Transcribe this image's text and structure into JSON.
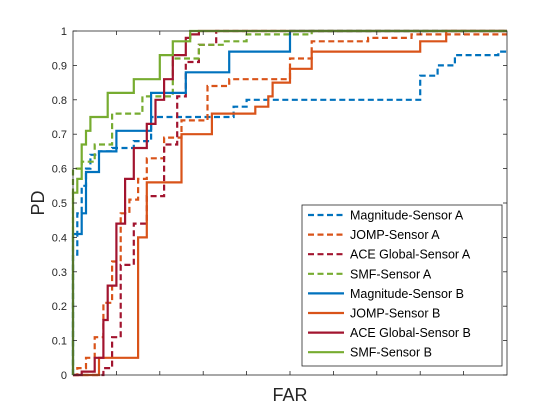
{
  "chart_data": {
    "type": "line",
    "title": "",
    "xlabel": "FAR",
    "ylabel": "PD",
    "ylim": [
      0,
      1
    ],
    "xlim": [
      0,
      1
    ],
    "y_ticks": [
      "0",
      "0.1",
      "0.2",
      "0.3",
      "0.4",
      "0.5",
      "0.6",
      "0.7",
      "0.8",
      "0.9",
      "1"
    ],
    "x_tick_labels_shown": false,
    "grid": false,
    "legend_position": "bottom-right",
    "series": [
      {
        "name": "Magnitude-Sensor A",
        "color": "#0072BD",
        "style": "dashed",
        "x": [
          0.0,
          0.0,
          0.01,
          0.01,
          0.02,
          0.02,
          0.03,
          0.03,
          0.04,
          0.04,
          0.06,
          0.06,
          0.09,
          0.09,
          0.14,
          0.14,
          0.18,
          0.18,
          0.24,
          0.24,
          0.37,
          0.37,
          0.4,
          0.4,
          0.54,
          0.54,
          0.8,
          0.8,
          0.84,
          0.84,
          0.88,
          0.88,
          0.98,
          0.98,
          1.0
        ],
        "y": [
          0.0,
          0.35,
          0.35,
          0.47,
          0.47,
          0.55,
          0.55,
          0.6,
          0.6,
          0.64,
          0.64,
          0.65,
          0.65,
          0.66,
          0.66,
          0.68,
          0.68,
          0.75,
          0.75,
          0.75,
          0.75,
          0.78,
          0.78,
          0.8,
          0.8,
          0.8,
          0.8,
          0.87,
          0.87,
          0.9,
          0.9,
          0.93,
          0.93,
          0.94,
          0.94
        ]
      },
      {
        "name": "JOMP-Sensor A",
        "color": "#D95319",
        "style": "dashed",
        "x": [
          0.0,
          0.01,
          0.01,
          0.03,
          0.03,
          0.05,
          0.05,
          0.07,
          0.07,
          0.09,
          0.09,
          0.11,
          0.11,
          0.13,
          0.13,
          0.15,
          0.15,
          0.17,
          0.17,
          0.21,
          0.21,
          0.25,
          0.25,
          0.31,
          0.31,
          0.36,
          0.36,
          0.5,
          0.5,
          0.55,
          0.55,
          0.68,
          0.68,
          0.78,
          0.78,
          1.0
        ],
        "y": [
          0.0,
          0.0,
          0.02,
          0.02,
          0.05,
          0.05,
          0.11,
          0.11,
          0.21,
          0.21,
          0.33,
          0.33,
          0.47,
          0.47,
          0.51,
          0.51,
          0.57,
          0.57,
          0.63,
          0.63,
          0.69,
          0.69,
          0.74,
          0.74,
          0.84,
          0.84,
          0.86,
          0.86,
          0.92,
          0.92,
          0.97,
          0.97,
          0.98,
          0.98,
          0.99,
          0.99
        ]
      },
      {
        "name": "ACE Global-Sensor A",
        "color": "#A2142F",
        "style": "dashed",
        "x": [
          0.0,
          0.07,
          0.07,
          0.09,
          0.09,
          0.11,
          0.11,
          0.14,
          0.14,
          0.17,
          0.17,
          0.21,
          0.21,
          0.24,
          0.24,
          0.26,
          0.26,
          0.29,
          0.29,
          0.33,
          0.33,
          1.0
        ],
        "y": [
          0.0,
          0.0,
          0.02,
          0.02,
          0.11,
          0.11,
          0.32,
          0.32,
          0.44,
          0.44,
          0.52,
          0.52,
          0.67,
          0.67,
          0.81,
          0.81,
          0.91,
          0.91,
          0.96,
          0.96,
          1.0,
          1.0
        ]
      },
      {
        "name": "SMF-Sensor A",
        "color": "#77AC30",
        "style": "dashed",
        "x": [
          0.0,
          0.0,
          0.02,
          0.02,
          0.05,
          0.05,
          0.09,
          0.09,
          0.16,
          0.16,
          0.23,
          0.23,
          0.29,
          0.29,
          0.35,
          0.35,
          0.4,
          0.4,
          0.55,
          0.55,
          1.0
        ],
        "y": [
          0.0,
          0.6,
          0.6,
          0.62,
          0.62,
          0.67,
          0.67,
          0.76,
          0.76,
          0.81,
          0.81,
          0.92,
          0.92,
          0.96,
          0.96,
          0.97,
          0.97,
          0.99,
          0.99,
          1.0,
          1.0
        ]
      },
      {
        "name": "Magnitude-Sensor B",
        "color": "#0072BD",
        "style": "solid",
        "x": [
          0.0,
          0.0,
          0.02,
          0.02,
          0.03,
          0.03,
          0.06,
          0.06,
          0.1,
          0.1,
          0.18,
          0.18,
          0.26,
          0.26,
          0.36,
          0.36,
          0.5,
          0.5,
          1.0
        ],
        "y": [
          0.0,
          0.41,
          0.41,
          0.47,
          0.47,
          0.59,
          0.59,
          0.65,
          0.65,
          0.71,
          0.71,
          0.82,
          0.82,
          0.88,
          0.88,
          0.94,
          0.94,
          1.0,
          1.0
        ]
      },
      {
        "name": "JOMP-Sensor B",
        "color": "#D95319",
        "style": "solid",
        "x": [
          0.0,
          0.06,
          0.06,
          0.15,
          0.15,
          0.17,
          0.17,
          0.25,
          0.25,
          0.32,
          0.32,
          0.42,
          0.42,
          0.45,
          0.45,
          0.46,
          0.46,
          0.5,
          0.5,
          0.55,
          0.55,
          0.6,
          0.6,
          0.8,
          0.8,
          0.86,
          0.86,
          1.0
        ],
        "y": [
          0.0,
          0.0,
          0.05,
          0.05,
          0.4,
          0.4,
          0.56,
          0.56,
          0.7,
          0.7,
          0.76,
          0.76,
          0.78,
          0.78,
          0.81,
          0.81,
          0.85,
          0.85,
          0.89,
          0.89,
          0.94,
          0.94,
          0.94,
          0.94,
          0.97,
          0.97,
          1.0,
          1.0
        ]
      },
      {
        "name": "ACE Global-Sensor B",
        "color": "#A2142F",
        "style": "solid",
        "x": [
          0.0,
          0.02,
          0.02,
          0.05,
          0.05,
          0.07,
          0.07,
          0.08,
          0.08,
          0.1,
          0.1,
          0.12,
          0.12,
          0.14,
          0.14,
          0.17,
          0.17,
          0.19,
          0.19,
          0.21,
          0.21,
          0.23,
          0.23,
          0.26,
          0.26,
          0.27,
          0.27,
          0.29,
          0.29,
          1.0
        ],
        "y": [
          0.0,
          0.0,
          0.01,
          0.01,
          0.05,
          0.05,
          0.16,
          0.16,
          0.26,
          0.26,
          0.44,
          0.44,
          0.57,
          0.57,
          0.66,
          0.66,
          0.73,
          0.73,
          0.8,
          0.8,
          0.86,
          0.86,
          0.93,
          0.93,
          0.98,
          0.98,
          0.99,
          0.99,
          1.0,
          1.0
        ]
      },
      {
        "name": "SMF-Sensor B",
        "color": "#77AC30",
        "style": "solid",
        "x": [
          0.0,
          0.0,
          0.01,
          0.01,
          0.02,
          0.02,
          0.03,
          0.03,
          0.04,
          0.04,
          0.08,
          0.08,
          0.14,
          0.14,
          0.2,
          0.2,
          0.23,
          0.23,
          0.27,
          0.27,
          1.0
        ],
        "y": [
          0.0,
          0.53,
          0.53,
          0.57,
          0.57,
          0.67,
          0.67,
          0.71,
          0.71,
          0.75,
          0.75,
          0.82,
          0.82,
          0.86,
          0.86,
          0.93,
          0.93,
          0.97,
          0.97,
          1.0,
          1.0
        ]
      }
    ]
  }
}
